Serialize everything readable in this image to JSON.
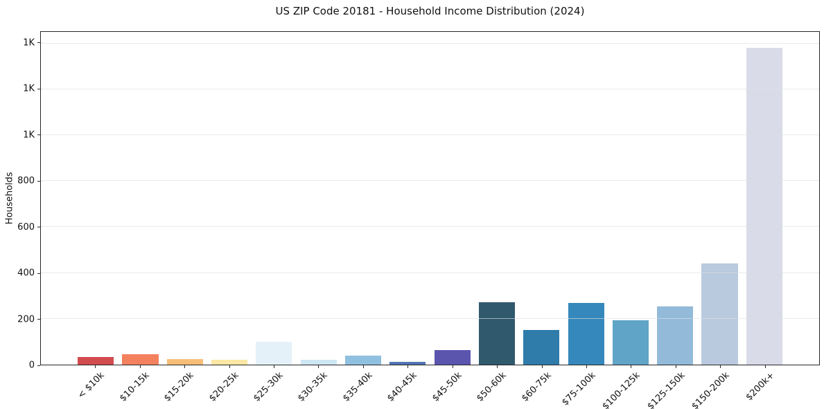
{
  "chart_data": {
    "type": "bar",
    "title": "US ZIP Code 20181 - Household Income Distribution (2024)",
    "xlabel": "",
    "ylabel": "Households",
    "categories": [
      "< $10k",
      "$10-15k",
      "$15-20k",
      "$20-25k",
      "$25-30k",
      "$30-35k",
      "$35-40k",
      "$40-45k",
      "$45-50k",
      "$50-60k",
      "$60-75k",
      "$75-100k",
      "$100-125k",
      "$125-150k",
      "$150-200k",
      "$200k+"
    ],
    "values": [
      34,
      44,
      24,
      20,
      100,
      22,
      40,
      12,
      64,
      273,
      151,
      268,
      193,
      254,
      442,
      1382
    ],
    "bar_colors": [
      "#d24b4f",
      "#f3815e",
      "#f7bd77",
      "#fce8a4",
      "#e4f1f8",
      "#cfe7f3",
      "#90c0e0",
      "#5174b4",
      "#5b55ae",
      "#30596e",
      "#2f7cab",
      "#3588bc",
      "#60a4c8",
      "#93bad9",
      "#b9cadf",
      "#d9dbe9"
    ],
    "ylim": [
      0,
      1450
    ],
    "ytick_values": [
      0,
      200,
      400,
      600,
      800,
      1000,
      1200,
      1400
    ],
    "ytick_labels": [
      "0",
      "200",
      "400",
      "600",
      "800",
      "1K",
      "1K",
      "1K"
    ],
    "grid": "horizontal",
    "legend": "none",
    "plot_background": "#ffffff",
    "axis_color": "#262626",
    "grid_color": "#e6e6e6",
    "text_color": "#111111"
  }
}
